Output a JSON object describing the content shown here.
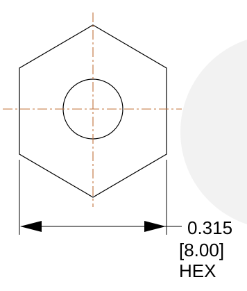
{
  "dimension": {
    "value_inch": "0.315",
    "value_mm": "[8.00]",
    "note": "HEX"
  },
  "colors": {
    "outline": "#000000",
    "centerline": "#c0703a",
    "background_watermark": "#f2f2f2"
  }
}
